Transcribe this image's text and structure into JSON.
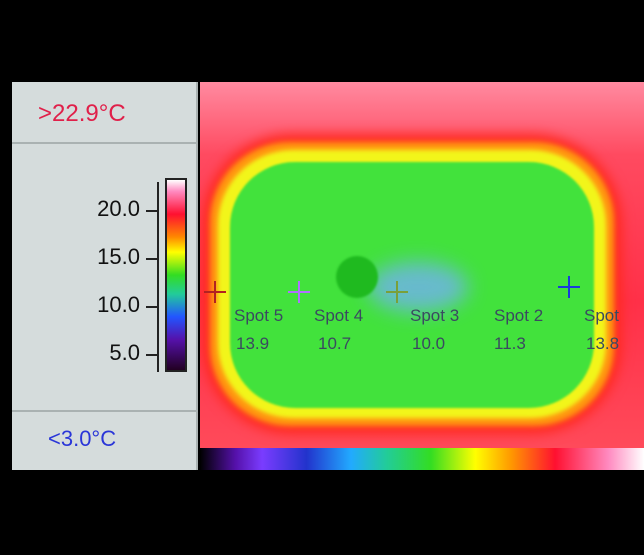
{
  "scale": {
    "max_label": ">22.9°C",
    "min_label": "<3.0°C",
    "ticks": [
      "20.0",
      "15.0",
      "10.0",
      "5.0"
    ]
  },
  "spots": [
    {
      "name": "Spot 5",
      "value": "13.9",
      "marker_color": "#b22222"
    },
    {
      "name": "Spot 4",
      "value": "10.7",
      "marker_color": "#b070ff"
    },
    {
      "name": "Spot 3",
      "value": "10.0",
      "marker_color": "#7aa03a"
    },
    {
      "name": "Spot 2",
      "value": "11.3",
      "marker_color": "#1a3adc"
    },
    {
      "name": "Spot",
      "value": "13.8",
      "marker_color": "#1a3adc"
    }
  ],
  "colors": {
    "max_text": "#e0204a",
    "min_text": "#2a36d8",
    "panel_bg": "#d5dcdc"
  }
}
